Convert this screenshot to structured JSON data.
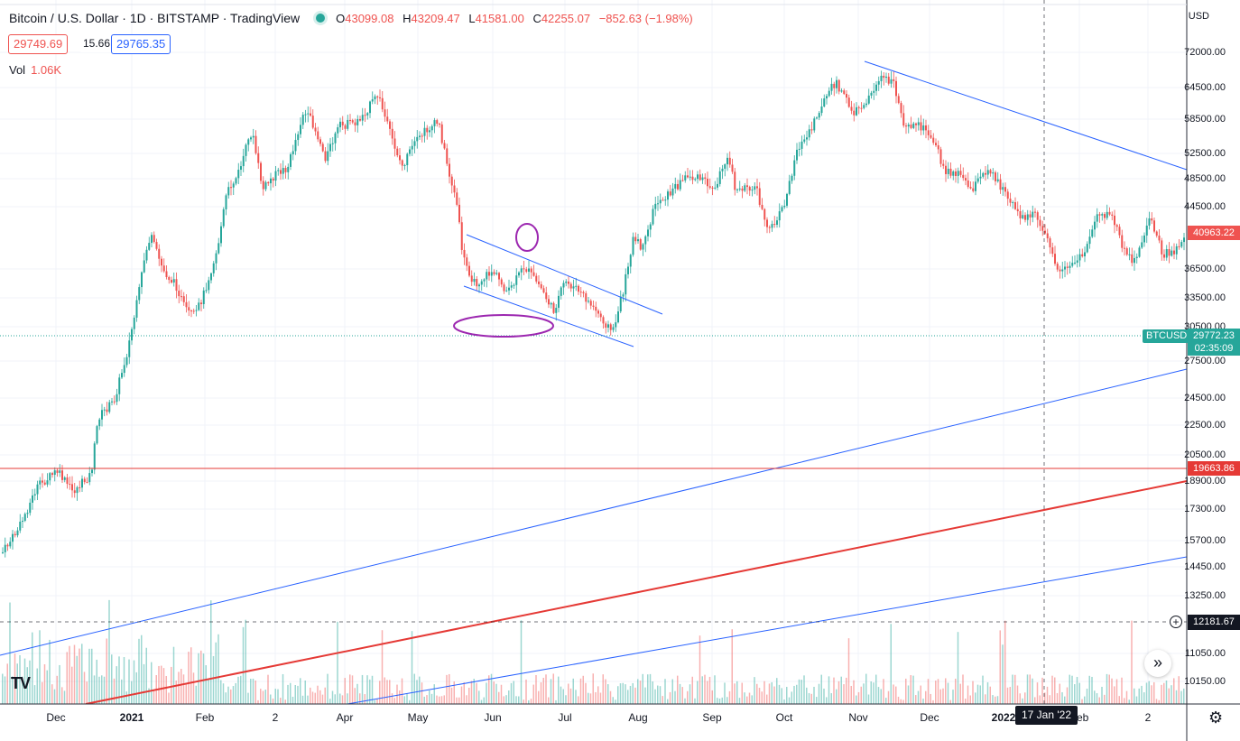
{
  "header": {
    "symbol_title": "Bitcoin / U.S. Dollar · 1D · BITSTAMP · TradingView",
    "open_key": "O",
    "open": "43099.08",
    "high_key": "H",
    "high": "43209.47",
    "low_key": "L",
    "low": "41581.00",
    "close_key": "C",
    "close": "42255.07",
    "change": "−852.63 (−1.98%)"
  },
  "quote": {
    "bid": "29749.69",
    "spread": "15.66",
    "ask": "29765.35"
  },
  "volume": {
    "label": "Vol",
    "value": "1.06K"
  },
  "price_axis": {
    "currency": "USD",
    "labels": [
      "72000.00",
      "64500.00",
      "58500.00",
      "52500.00",
      "48500.00",
      "44500.00",
      "36500.00",
      "33500.00",
      "30500.00",
      "27500.00",
      "24500.00",
      "22500.00",
      "20500.00",
      "18900.00",
      "17300.00",
      "15700.00",
      "14450.00",
      "13250.00",
      "11050.00",
      "10150.00"
    ]
  },
  "price_tags": {
    "last_visible": "40963.22",
    "horizontal_line": "19663.86",
    "btcusd_label": "BTCUSD",
    "btcusd_price": "29772.23",
    "countdown": "02:35:09",
    "crosshair_price": "12181.67"
  },
  "time_axis": {
    "labels": [
      "Dec",
      "2021",
      "Feb",
      "2",
      "Apr",
      "May",
      "Jun",
      "Jul",
      "Aug",
      "Sep",
      "Oct",
      "Nov",
      "Dec",
      "2022",
      "Feb",
      "2"
    ],
    "crosshair_date": "17 Jan '22"
  },
  "colors": {
    "up": "#26a69a",
    "down": "#ef5350",
    "trendline": "#2962ff",
    "support_line": "#e53935",
    "annotation": "#9c27b0",
    "crosshair": "#131722"
  },
  "icons": {
    "settings": "gear-icon",
    "goto_realtime": "double-chevron-right-icon",
    "add_alert": "plus-circle-icon",
    "logo": "tradingview-logo"
  }
}
